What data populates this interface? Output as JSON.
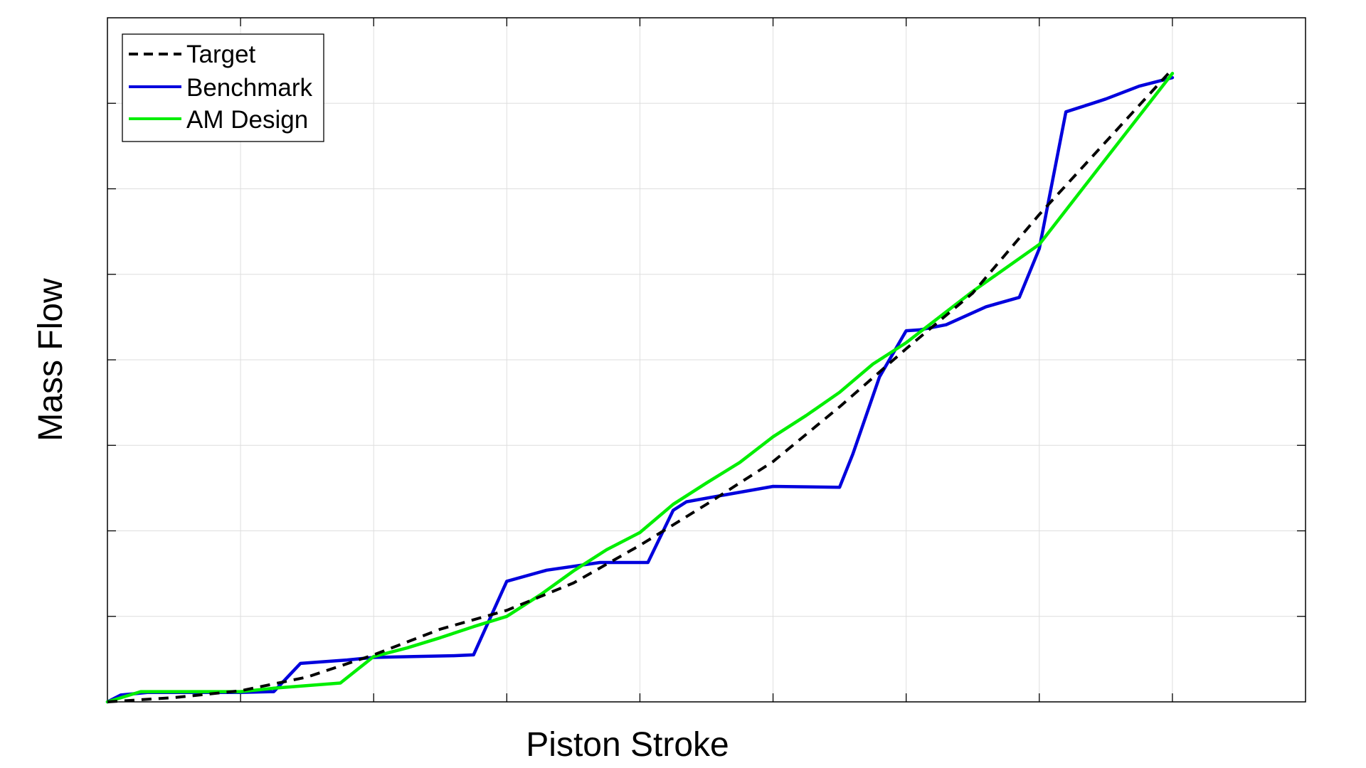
{
  "chart_data": {
    "type": "line",
    "title": "",
    "xlabel": "Piston Stroke",
    "ylabel": "Mass Flow",
    "xlim": [
      0,
      9
    ],
    "ylim": [
      0,
      8
    ],
    "grid": true,
    "tick_labels_visible": false,
    "legend_position": "top-left",
    "series": [
      {
        "name": "Target",
        "color": "#000000",
        "line_style": "dashed",
        "x": [
          0,
          0.5,
          1.0,
          1.5,
          2.0,
          2.5,
          3.0,
          3.5,
          4.0,
          4.5,
          5.0,
          5.5,
          6.0,
          6.5,
          7.0,
          7.5,
          8.0
        ],
        "y": [
          0,
          0.05,
          0.13,
          0.29,
          0.55,
          0.85,
          1.07,
          1.39,
          1.83,
          2.31,
          2.81,
          3.45,
          4.13,
          4.78,
          5.7,
          6.55,
          7.4
        ]
      },
      {
        "name": "Benchmark",
        "color": "#0000dd",
        "line_style": "solid",
        "x": [
          0,
          0.1,
          0.3,
          1.0,
          1.25,
          1.45,
          1.8,
          2.0,
          2.3,
          2.6,
          2.75,
          3.0,
          3.3,
          3.7,
          4.06,
          4.25,
          4.35,
          4.6,
          5.0,
          5.5,
          5.6,
          5.8,
          6.0,
          6.1,
          6.3,
          6.6,
          6.85,
          7.0,
          7.2,
          7.3,
          7.4,
          7.5,
          7.75,
          8.0
        ],
        "y": [
          0,
          0.08,
          0.11,
          0.11,
          0.12,
          0.45,
          0.49,
          0.52,
          0.53,
          0.54,
          0.55,
          1.41,
          1.54,
          1.63,
          1.63,
          2.24,
          2.34,
          2.41,
          2.52,
          2.51,
          2.9,
          3.8,
          4.34,
          4.35,
          4.41,
          4.62,
          4.73,
          5.3,
          6.9,
          6.95,
          7.0,
          7.05,
          7.2,
          7.3
        ]
      },
      {
        "name": "AM Design",
        "color": "#00ee00",
        "line_style": "solid",
        "x": [
          0,
          0.25,
          1.0,
          1.25,
          1.75,
          2.0,
          2.25,
          2.5,
          2.75,
          3.0,
          3.25,
          3.5,
          3.75,
          4.0,
          4.25,
          4.5,
          4.75,
          5.0,
          5.25,
          5.5,
          5.75,
          6.0,
          6.5,
          7.0,
          7.5,
          8.0
        ],
        "y": [
          0,
          0.12,
          0.12,
          0.16,
          0.22,
          0.53,
          0.63,
          0.75,
          0.88,
          1.0,
          1.25,
          1.53,
          1.78,
          1.98,
          2.31,
          2.56,
          2.8,
          3.1,
          3.35,
          3.62,
          3.95,
          4.2,
          4.8,
          5.35,
          6.35,
          7.35
        ]
      }
    ]
  }
}
